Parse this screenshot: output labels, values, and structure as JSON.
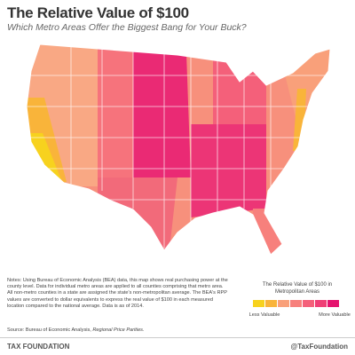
{
  "title": "The Relative Value of $100",
  "subtitle": "Which Metro Areas Offer the Biggest Bang for Your Buck?",
  "notes": "Notes: Using Bureau of Economic Analysis (BEA) data, this map shows real purchasing power at the county level. Data for individual metro areas are applied to all counties comprising that metro area. All non-metro counties in a state are assigned the state's non-metropolitan average. The BEA's RPP values are converted to dollar equivalents to express the real value of $100 in each measured location compared to the national average. Data is as of 2014.",
  "source": {
    "prefix": "Source: Bureau of Economic Analysis, ",
    "publication": "Regional Price Parities."
  },
  "legend": {
    "title": "The Relative Value of $100 in Metropolitan Areas",
    "colors": [
      "#f7d21e",
      "#f9b43a",
      "#f9a07a",
      "#f7807c",
      "#f4607a",
      "#ef3f76",
      "#e5146f"
    ],
    "low": "Less Valuable",
    "high": "More Valuable"
  },
  "footer": {
    "brand": "TAX FOUNDATION",
    "handle": "@TaxFoundation"
  }
}
